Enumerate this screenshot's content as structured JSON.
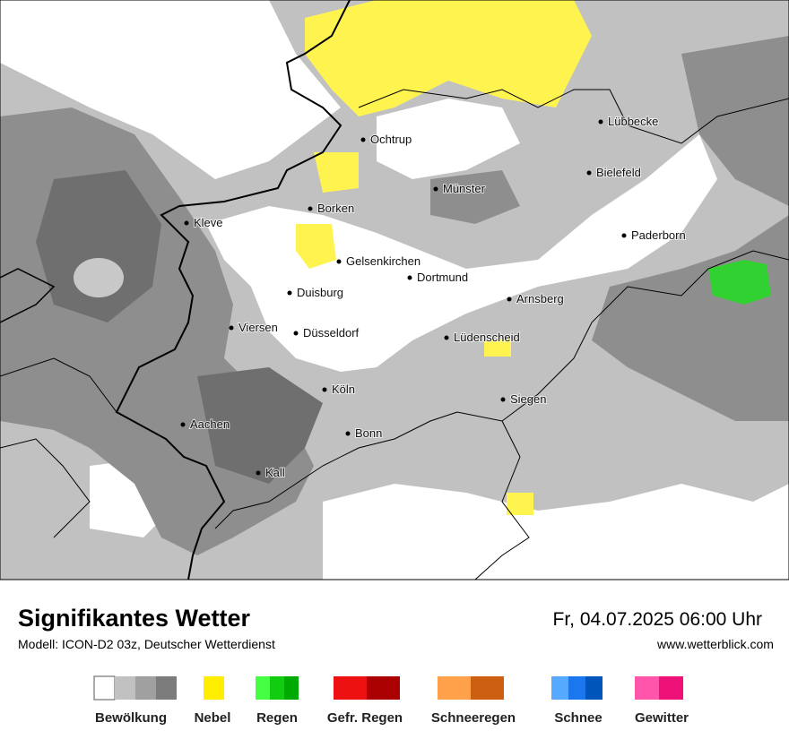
{
  "header": {
    "title": "Signifikantes Wetter",
    "subtitle": "Modell: ICON-D2 03z, Deutscher Wetterdienst",
    "datetime": "Fr, 04.07.2025 06:00 Uhr",
    "website": "www.wetterblick.com"
  },
  "cities": [
    {
      "label": "Lübbecke"
    },
    {
      "label": "Ochtrup"
    },
    {
      "label": "Bielefeld"
    },
    {
      "label": "Münster"
    },
    {
      "label": "Borken"
    },
    {
      "label": "Kleve"
    },
    {
      "label": "Paderborn"
    },
    {
      "label": "Gelsenkirchen"
    },
    {
      "label": "Dortmund"
    },
    {
      "label": "Duisburg"
    },
    {
      "label": "Arnsberg"
    },
    {
      "label": "Viersen"
    },
    {
      "label": "Düsseldorf"
    },
    {
      "label": "Lüdenscheid"
    },
    {
      "label": "Köln"
    },
    {
      "label": "Siegen"
    },
    {
      "label": "Aachen"
    },
    {
      "label": "Bonn"
    },
    {
      "label": "Kall"
    }
  ],
  "legend": [
    {
      "label": "Bewölkung"
    },
    {
      "label": "Nebel"
    },
    {
      "label": "Regen"
    },
    {
      "label": "Gefr. Regen"
    },
    {
      "label": "Schneeregen"
    },
    {
      "label": "Schnee"
    },
    {
      "label": "Gewitter"
    }
  ]
}
